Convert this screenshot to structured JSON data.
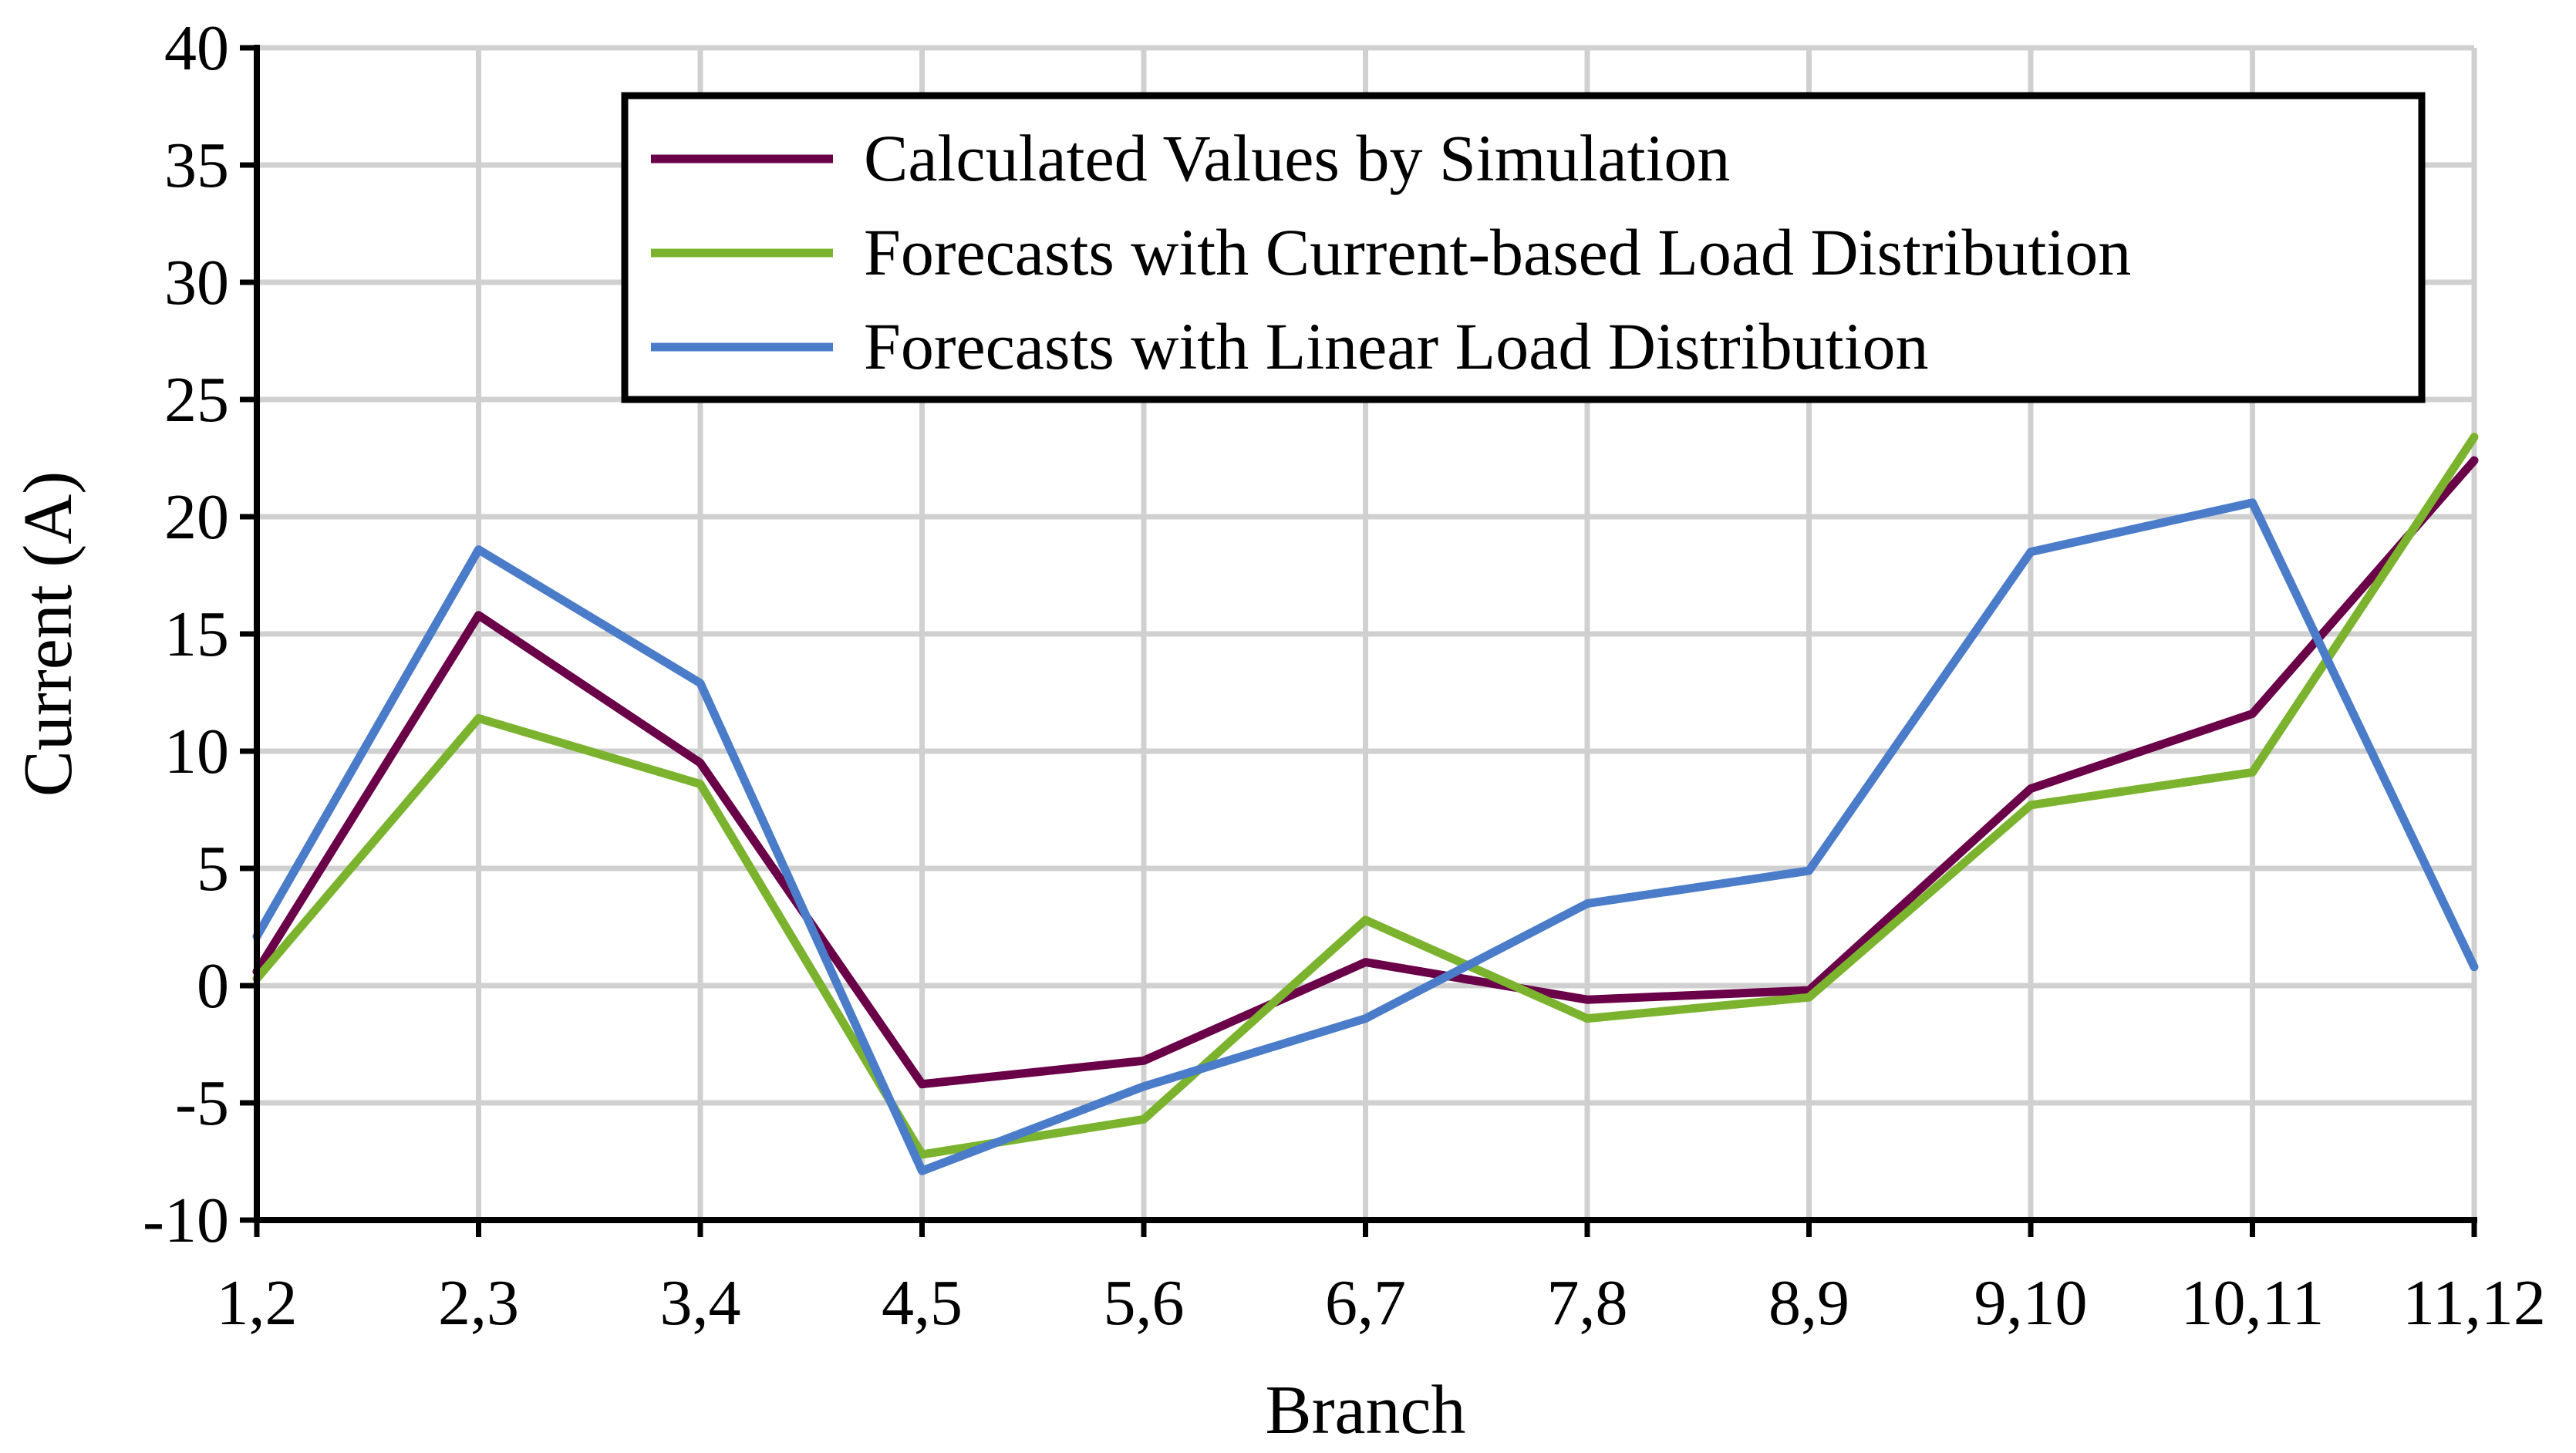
{
  "chart_data": {
    "type": "line",
    "title": "",
    "xlabel": "Branch",
    "ylabel": "Current (A)",
    "categories": [
      "1,2",
      "2,3",
      "3,4",
      "4,5",
      "5,6",
      "6,7",
      "7,8",
      "8,9",
      "9,10",
      "10,11",
      "11,12"
    ],
    "ylim": [
      -10,
      40
    ],
    "ytick_step": 5,
    "grid": true,
    "legend_position": "top-right",
    "series": [
      {
        "name": "Calculated Values by Simulation",
        "color": "#6a0048",
        "values": [
          0.6,
          15.8,
          9.5,
          -4.2,
          -3.2,
          1.0,
          -0.6,
          -0.2,
          8.4,
          11.6,
          22.4
        ]
      },
      {
        "name": "Forecasts with Current-based Load Distribution",
        "color": "#7bb32e",
        "values": [
          0.3,
          11.4,
          8.6,
          -7.2,
          -5.7,
          2.8,
          -1.4,
          -0.5,
          7.7,
          9.1,
          23.4
        ]
      },
      {
        "name": "Forecasts with Linear Load Distribution",
        "color": "#4a7cc9",
        "values": [
          2.1,
          18.6,
          12.9,
          -7.9,
          -4.3,
          -1.4,
          3.5,
          4.9,
          18.5,
          20.6,
          0.8
        ]
      }
    ]
  }
}
